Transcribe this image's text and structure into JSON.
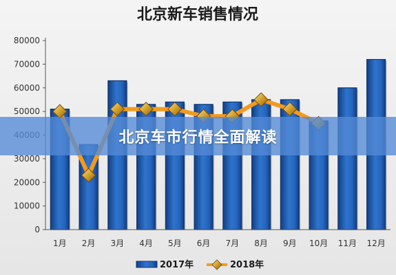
{
  "chart_data": {
    "type": "bar",
    "title": "北京新车销售情况",
    "categories": [
      "1月",
      "2月",
      "3月",
      "4月",
      "5月",
      "6月",
      "7月",
      "8月",
      "9月",
      "10月",
      "11月",
      "12月"
    ],
    "series": [
      {
        "name": "2017年",
        "type": "bar",
        "values": [
          51000,
          36000,
          63000,
          53000,
          54000,
          53000,
          54000,
          55000,
          55000,
          46000,
          60000,
          72000
        ]
      },
      {
        "name": "2018年",
        "type": "line",
        "values": [
          50000,
          23000,
          51000,
          51000,
          51000,
          48000,
          48000,
          55000,
          51000,
          45000,
          null,
          null
        ]
      }
    ],
    "ylim": [
      0,
      80000
    ],
    "yticks": [
      0,
      10000,
      20000,
      30000,
      40000,
      50000,
      60000,
      70000,
      80000
    ],
    "grid": false,
    "legend": "bottom"
  },
  "overlay": {
    "banner_text": "北京车市行情全面解读"
  },
  "colors": {
    "bar": "#1f5cb0",
    "bar_light": "#4a8ad8",
    "line": "#f39a1e",
    "marker": "#c8941a"
  }
}
